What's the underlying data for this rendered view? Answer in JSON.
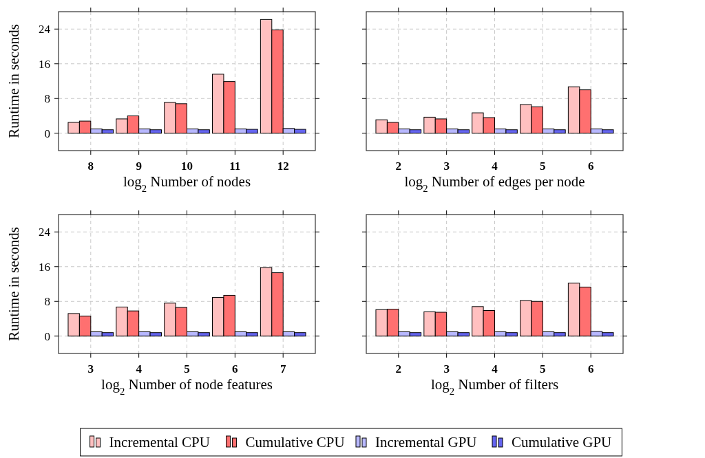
{
  "chart_data": [
    {
      "type": "bar",
      "xlabel": "log$_{2}$ Number of nodes",
      "ylabel": "Runtime in seconds",
      "categories": [
        "8",
        "9",
        "10",
        "11",
        "12"
      ],
      "ylim": [
        -4,
        28
      ],
      "yticks": [
        0,
        8,
        16,
        24
      ],
      "grid": true,
      "legend": "bottom",
      "series": [
        {
          "name": "Incremental CPU",
          "color": "#ffc0c0",
          "values": [
            2.5,
            3.3,
            7.1,
            13.6,
            26.2
          ]
        },
        {
          "name": "Cumulative CPU",
          "color": "#ff7070",
          "values": [
            2.8,
            4.0,
            6.8,
            11.9,
            23.8
          ]
        },
        {
          "name": "Incremental GPU",
          "color": "#b8b8ff",
          "values": [
            1.0,
            1.0,
            1.0,
            1.0,
            1.1
          ]
        },
        {
          "name": "Cumulative GPU",
          "color": "#6464f0",
          "values": [
            0.8,
            0.8,
            0.8,
            0.9,
            0.9
          ]
        }
      ]
    },
    {
      "type": "bar",
      "xlabel": "log$_{2}$ Number of edges per node",
      "categories": [
        "2",
        "3",
        "4",
        "5",
        "6"
      ],
      "ylim": [
        -4,
        28
      ],
      "yticks": [
        0,
        8,
        16,
        24
      ],
      "grid": true,
      "tick_labels": "x",
      "series": [
        {
          "color": "#ffc0c0",
          "values": [
            3.1,
            3.7,
            4.7,
            6.6,
            10.7
          ]
        },
        {
          "color": "#ff7070",
          "values": [
            2.5,
            3.3,
            3.6,
            6.1,
            10.0
          ]
        },
        {
          "color": "#b8b8ff",
          "values": [
            1.0,
            1.0,
            1.0,
            1.0,
            1.0
          ]
        },
        {
          "color": "#6464f0",
          "values": [
            0.8,
            0.8,
            0.8,
            0.8,
            0.8
          ]
        }
      ]
    },
    {
      "type": "bar",
      "xlabel": "log$_{2}$ Number of node features",
      "ylabel": "Runtime in seconds",
      "categories": [
        "3",
        "4",
        "5",
        "6",
        "7"
      ],
      "ylim": [
        -4,
        28
      ],
      "yticks": [
        0,
        8,
        16,
        24
      ],
      "grid": true,
      "series": [
        {
          "color": "#ffc0c0",
          "values": [
            5.2,
            6.7,
            7.6,
            8.9,
            15.8
          ]
        },
        {
          "color": "#ff7070",
          "values": [
            4.6,
            5.8,
            6.6,
            9.4,
            14.6
          ]
        },
        {
          "color": "#b8b8ff",
          "values": [
            1.0,
            1.0,
            1.0,
            1.0,
            1.0
          ]
        },
        {
          "color": "#6464f0",
          "values": [
            0.8,
            0.8,
            0.8,
            0.8,
            0.8
          ]
        }
      ]
    },
    {
      "type": "bar",
      "xlabel": "log$_{2}$ Number of filters",
      "categories": [
        "2",
        "3",
        "4",
        "5",
        "6"
      ],
      "ylim": [
        -4,
        28
      ],
      "yticks": [
        0,
        8,
        16,
        24
      ],
      "grid": true,
      "tick_labels": "x",
      "series": [
        {
          "color": "#ffc0c0",
          "values": [
            6.1,
            5.6,
            6.8,
            8.2,
            12.2
          ]
        },
        {
          "color": "#ff7070",
          "values": [
            6.2,
            5.5,
            5.9,
            8.0,
            11.3
          ]
        },
        {
          "color": "#b8b8ff",
          "values": [
            1.0,
            1.0,
            1.0,
            1.0,
            1.1
          ]
        },
        {
          "color": "#6464f0",
          "values": [
            0.8,
            0.8,
            0.8,
            0.8,
            0.8
          ]
        }
      ]
    }
  ]
}
